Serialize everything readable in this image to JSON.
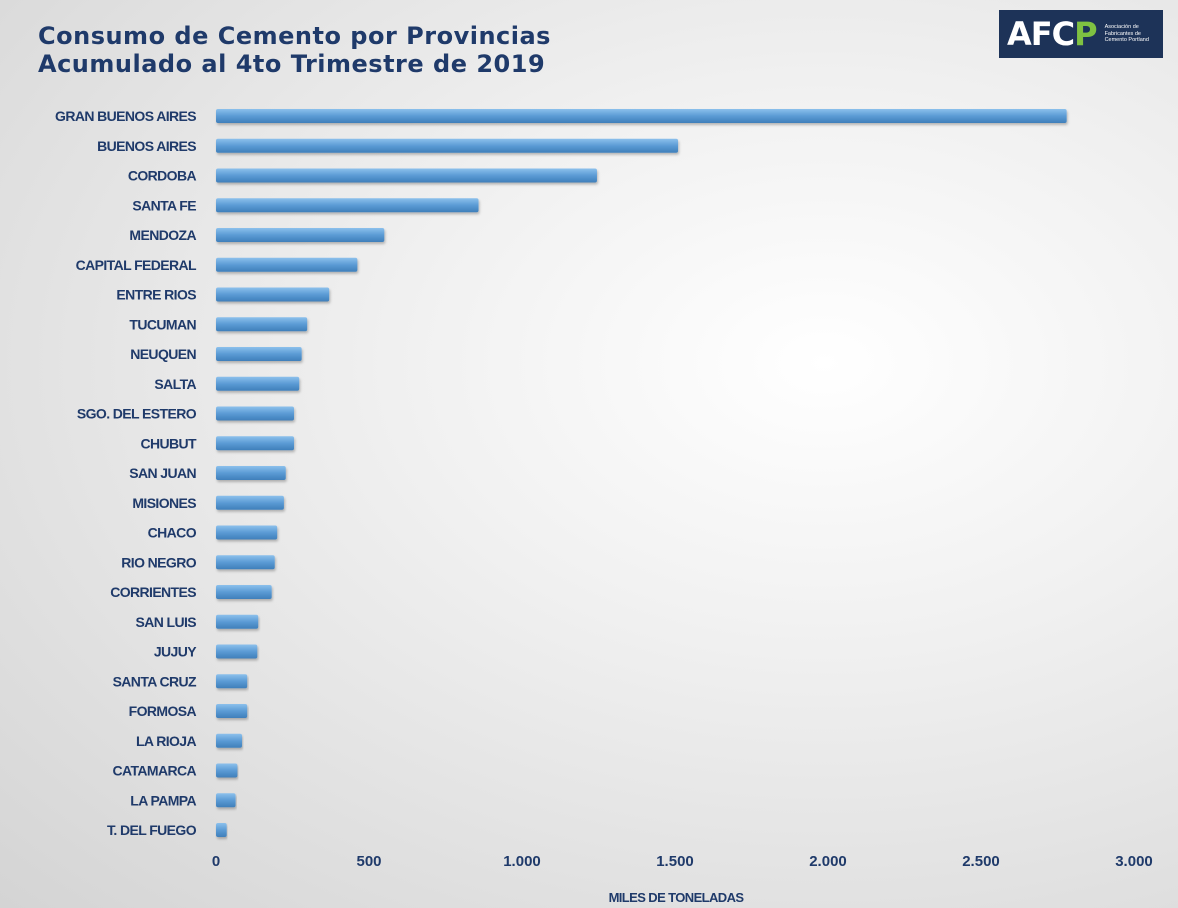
{
  "header": {
    "title_line1": "Consumo de Cemento por Provincias",
    "title_line2": "Acumulado al 4to Trimestre de 2019"
  },
  "logo": {
    "mark": "AFC",
    "mark_accent": "P",
    "text": "Asociación de Fabricantes de Cemento Portland"
  },
  "chart_data": {
    "type": "bar",
    "orientation": "horizontal",
    "title": "Consumo de Cemento por Provincias Acumulado al 4to Trimestre de 2019",
    "xlabel": "MILES DE TONELADAS",
    "ylabel": "",
    "xlim": [
      0,
      3000
    ],
    "xticks": [
      0,
      500,
      1000,
      1500,
      2000,
      2500,
      3000
    ],
    "xtick_labels": [
      "0",
      "500",
      "1.000",
      "1.500",
      "2.000",
      "2.500",
      "3.000"
    ],
    "grid": false,
    "bar_color": "#5b9bd5",
    "categories": [
      "GRAN BUENOS AIRES",
      "BUENOS AIRES",
      "CORDOBA",
      "SANTA FE",
      "MENDOZA",
      "CAPITAL FEDERAL",
      "ENTRE RIOS",
      "TUCUMAN",
      "NEUQUEN",
      "SALTA",
      "SGO. DEL ESTERO",
      "CHUBUT",
      "SAN JUAN",
      "MISIONES",
      "CHACO",
      "RIO NEGRO",
      "CORRIENTES",
      "SAN LUIS",
      "JUJUY",
      "SANTA CRUZ",
      "FORMOSA",
      "LA RIOJA",
      "CATAMARCA",
      "LA PAMPA",
      "T. DEL FUEGO"
    ],
    "values": [
      2780,
      1510,
      1245,
      858,
      550,
      462,
      370,
      298,
      280,
      272,
      255,
      255,
      228,
      222,
      200,
      192,
      182,
      138,
      135,
      102,
      102,
      85,
      70,
      64,
      35
    ]
  }
}
